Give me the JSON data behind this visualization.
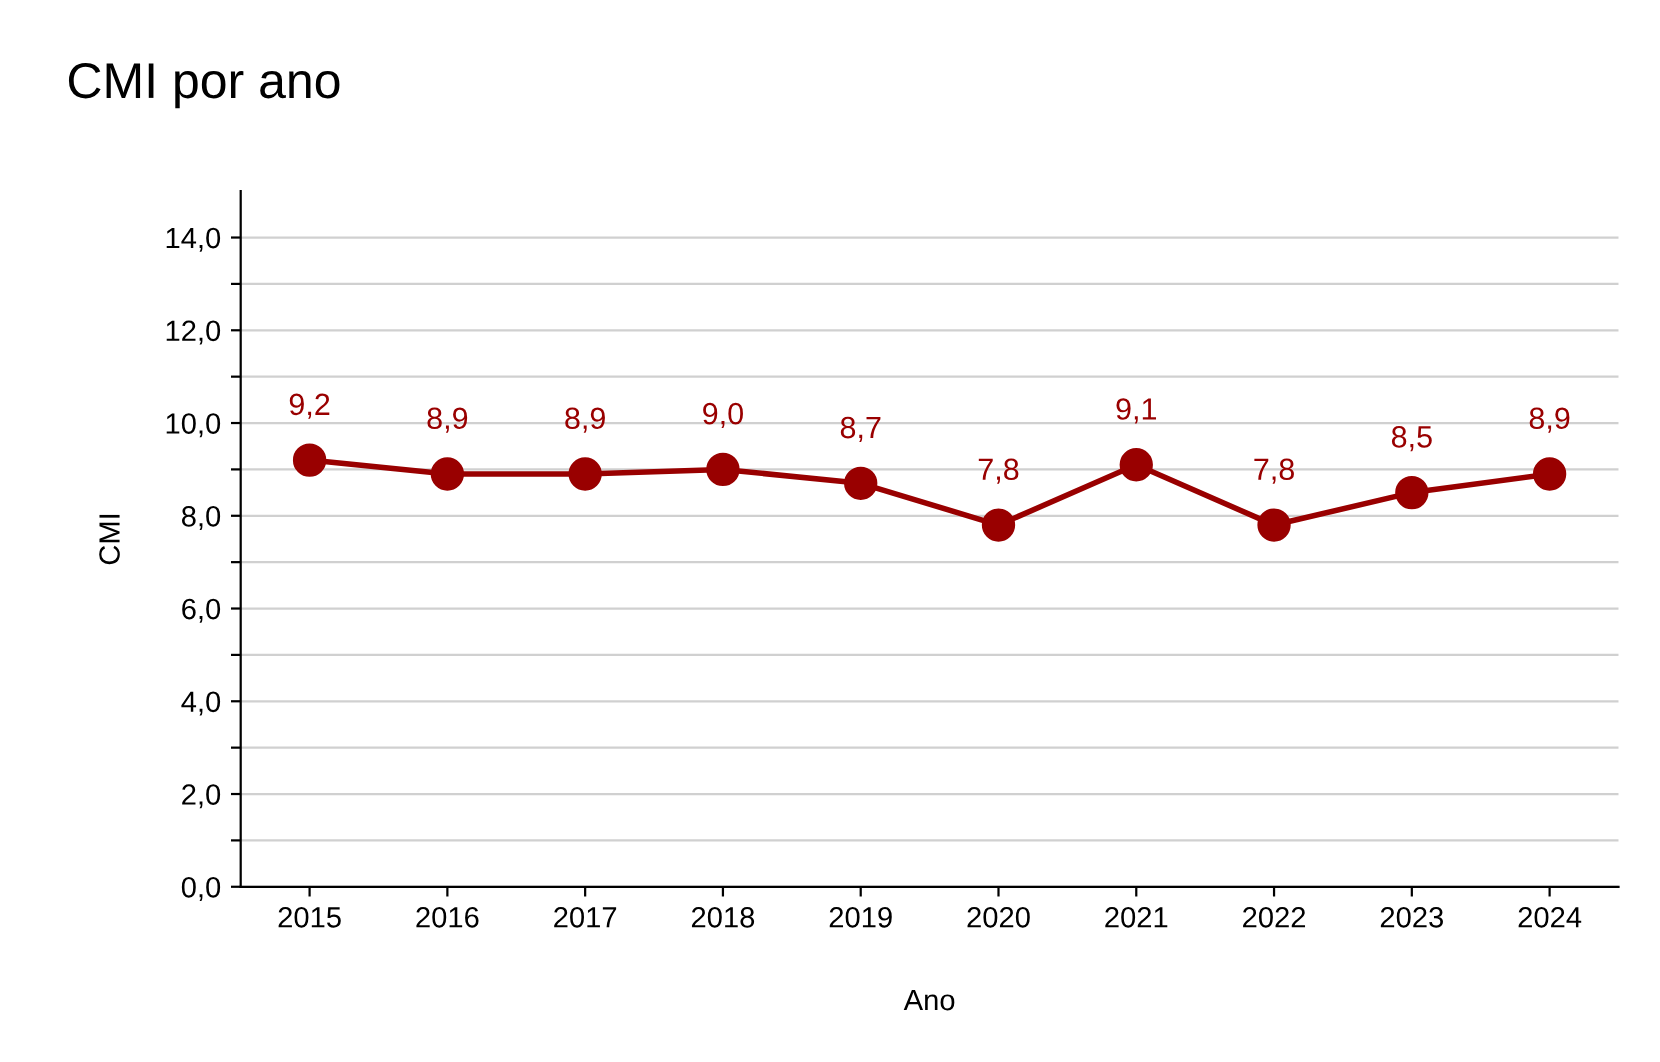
{
  "chart_data": {
    "type": "line",
    "title": "CMI por ano",
    "xlabel": "Ano",
    "ylabel": "CMI",
    "categories": [
      "2015",
      "2016",
      "2017",
      "2018",
      "2019",
      "2020",
      "2021",
      "2022",
      "2023",
      "2024"
    ],
    "series": [
      {
        "color": "#990000",
        "values": [
          9.2,
          8.9,
          8.9,
          9.0,
          8.7,
          7.8,
          9.1,
          7.8,
          8.5,
          8.9
        ],
        "value_labels": [
          "9,2",
          "8,9",
          "8,9",
          "9,0",
          "8,7",
          "7,8",
          "9,1",
          "7,8",
          "8,5",
          "8,9"
        ]
      }
    ],
    "ylim": [
      0,
      15
    ],
    "yticks": [
      {
        "value": 0,
        "label": "0,0"
      },
      {
        "value": 1,
        "label": null
      },
      {
        "value": 2,
        "label": "2,0"
      },
      {
        "value": 3,
        "label": null
      },
      {
        "value": 4,
        "label": "4,0"
      },
      {
        "value": 5,
        "label": null
      },
      {
        "value": 6,
        "label": "6,0"
      },
      {
        "value": 7,
        "label": null
      },
      {
        "value": 8,
        "label": "8,0"
      },
      {
        "value": 9,
        "label": null
      },
      {
        "value": 10,
        "label": "10,0"
      },
      {
        "value": 11,
        "label": null
      },
      {
        "value": 12,
        "label": "12,0"
      },
      {
        "value": 13,
        "label": null
      },
      {
        "value": 14,
        "label": "14,0"
      }
    ],
    "grid": "y",
    "marker": "circle",
    "line_style": "solid"
  }
}
